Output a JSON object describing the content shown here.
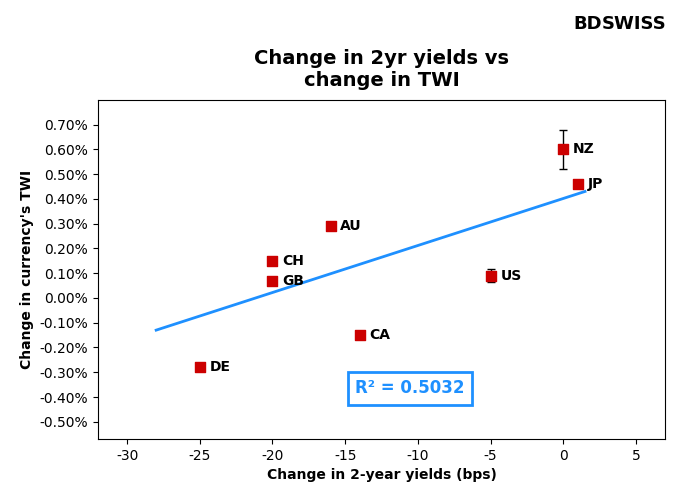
{
  "chart_data": {
    "type": "scatter",
    "title": "Change in 2yr yields vs\nchange in TWI",
    "x_label": "Change in 2-year yields (bps)",
    "y_label": "Change in currency's TWI",
    "xlim": [
      -32,
      7
    ],
    "ylim": [
      -0.57,
      0.8
    ],
    "xticks": [
      -30,
      -25,
      -20,
      -15,
      -10,
      -5,
      0,
      5
    ],
    "yticks": [
      {
        "value": -0.5,
        "label": "-0.50%"
      },
      {
        "value": -0.4,
        "label": "-0.40%"
      },
      {
        "value": -0.3,
        "label": "-0.30%"
      },
      {
        "value": -0.2,
        "label": "-0.20%"
      },
      {
        "value": -0.1,
        "label": "-0.10%"
      },
      {
        "value": 0.0,
        "label": "0.00%"
      },
      {
        "value": 0.1,
        "label": "0.10%"
      },
      {
        "value": 0.2,
        "label": "0.20%"
      },
      {
        "value": 0.3,
        "label": "0.30%"
      },
      {
        "value": 0.4,
        "label": "0.40%"
      },
      {
        "value": 0.5,
        "label": "0.50%"
      },
      {
        "value": 0.6,
        "label": "0.60%"
      },
      {
        "value": 0.7,
        "label": "0.70%"
      }
    ],
    "grid": false,
    "series": [
      {
        "type": "scatter",
        "color": "#CC0000",
        "marker": "square",
        "x": [
          -25,
          -20,
          -20,
          -16,
          -14,
          -5,
          0,
          1
        ],
        "values": [
          -0.28,
          0.15,
          0.07,
          0.29,
          -0.15,
          0.09,
          0.6,
          0.46
        ],
        "labels": [
          "DE",
          "CH",
          "GB",
          "AU",
          "CA",
          "US",
          "NZ",
          "JP"
        ],
        "errors": [
          null,
          null,
          null,
          null,
          null,
          0.025,
          0.08,
          null
        ]
      },
      {
        "type": "line",
        "color": "#1E90FF",
        "x": [
          -28,
          1.5
        ],
        "values": [
          -0.13,
          0.43
        ]
      }
    ],
    "annotations": [
      "R² = 0.5032",
      "BD",
      "SWISS"
    ]
  }
}
